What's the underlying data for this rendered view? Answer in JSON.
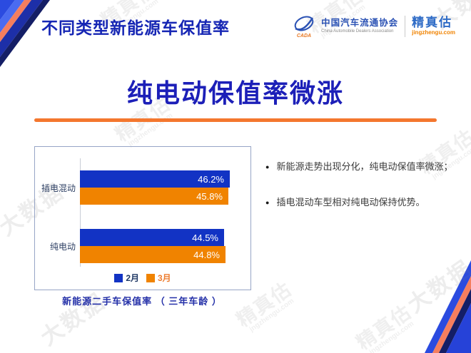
{
  "header": {
    "slide_title": "不同类型新能源车保值率",
    "cada": {
      "name": "中国汽车流通协会",
      "subtitle": "China Automobile Dealers Association",
      "mark": "CADA"
    },
    "jzg": {
      "name": "精真估",
      "url": "jingzhengu.com"
    }
  },
  "heading": "纯电动保值率微涨",
  "chart_data": {
    "type": "bar",
    "orientation": "horizontal",
    "title": "新能源二手车保值率 （ 三年车龄 ）",
    "categories": [
      "插电混动",
      "纯电动"
    ],
    "series": [
      {
        "name": "2月",
        "color": "#1233C4",
        "values": [
          46.2,
          44.5
        ]
      },
      {
        "name": "3月",
        "color": "#F08300",
        "values": [
          45.8,
          44.8
        ]
      }
    ],
    "unit": "%",
    "xlim": [
      0,
      47
    ],
    "grid": false,
    "legend_position": "bottom",
    "value_labels_shown": true
  },
  "bullets": [
    {
      "text": "新能源走势出现分化，纯电动保值率微涨；"
    },
    {
      "text": "插电混动车型相对纯电动保持优势。"
    }
  ],
  "watermarks": {
    "brand": "精真估",
    "brand_url": "jngzhengu.com",
    "bigdata": "大数据"
  },
  "colors": {
    "title_blue": "#1626B4",
    "heading_blue": "#1C1FB8",
    "rule_orange": "#F4772E",
    "bar_blue": "#1233C4",
    "bar_orange": "#F08300",
    "panel_border": "#97A5C6",
    "ribbon_royal": "#2B4BE0",
    "ribbon_light": "#4A6BF0",
    "ribbon_salmon": "#F57E5E",
    "ribbon_deep": "#1D2FA8",
    "ribbon_navy": "#141E66"
  }
}
